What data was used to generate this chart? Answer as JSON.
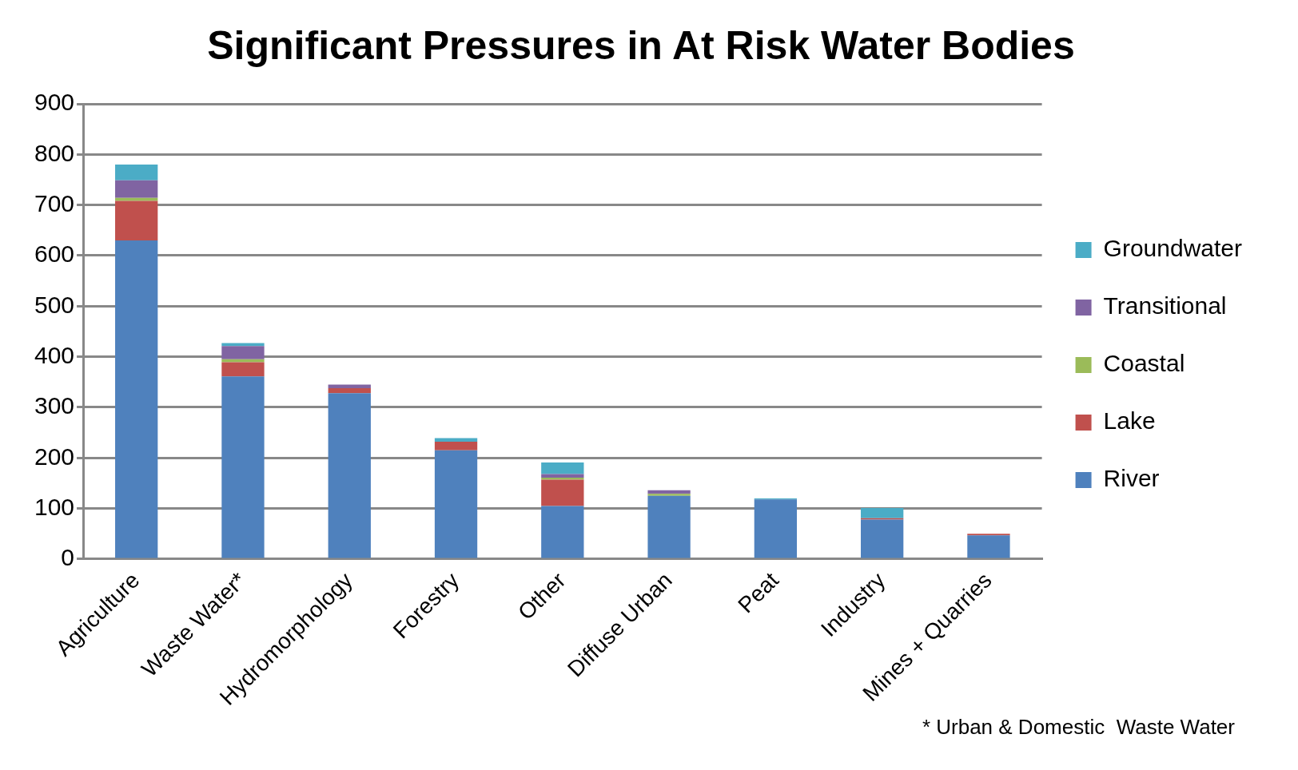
{
  "chart_data": {
    "type": "bar",
    "title": "Significant Pressures in At Risk Water Bodies",
    "categories": [
      "Agriculture",
      "Waste Water*",
      "Hydromorphology",
      "Forestry",
      "Other",
      "Diffuse Urban",
      "Peat",
      "Industry",
      "Mines + Quarries"
    ],
    "stacked": true,
    "series": [
      {
        "name": "River",
        "color": "#4f81bd",
        "values": [
          630,
          361,
          328,
          215,
          105,
          125,
          118,
          78,
          47
        ]
      },
      {
        "name": "Lake",
        "color": "#c0504d",
        "values": [
          78,
          28,
          10,
          17,
          52,
          0,
          0,
          3,
          3
        ]
      },
      {
        "name": "Coastal",
        "color": "#9bbb59",
        "values": [
          6,
          6,
          0,
          0,
          4,
          4,
          0,
          0,
          0
        ]
      },
      {
        "name": "Transitional",
        "color": "#8064a2",
        "values": [
          35,
          26,
          7,
          0,
          7,
          7,
          0,
          0,
          0
        ]
      },
      {
        "name": "Groundwater",
        "color": "#4bacc6",
        "values": [
          31,
          6,
          0,
          7,
          23,
          0,
          2,
          20,
          0
        ]
      }
    ],
    "ylim": [
      0,
      900
    ],
    "yticks": [
      0,
      100,
      200,
      300,
      400,
      500,
      600,
      700,
      800,
      900
    ],
    "grid": "y",
    "legend": "right",
    "annotations": [
      "* Urban & Domestic  Waste Water"
    ]
  }
}
